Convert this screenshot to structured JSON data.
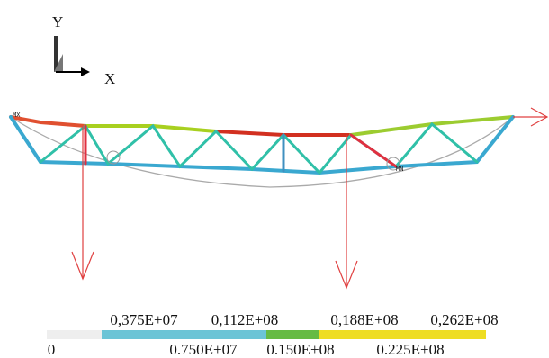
{
  "axes": {
    "y_label": "Y",
    "x_label": "X"
  },
  "markers": {
    "max": "MX",
    "min": "MN"
  },
  "legend": {
    "top_labels": [
      "0,375E+07",
      "0,112E+08",
      "0,188E+08",
      "0,262E+08"
    ],
    "bottom_labels": [
      "0",
      "0.750E+07",
      "0.150E+08",
      "0.225E+08"
    ]
  }
}
